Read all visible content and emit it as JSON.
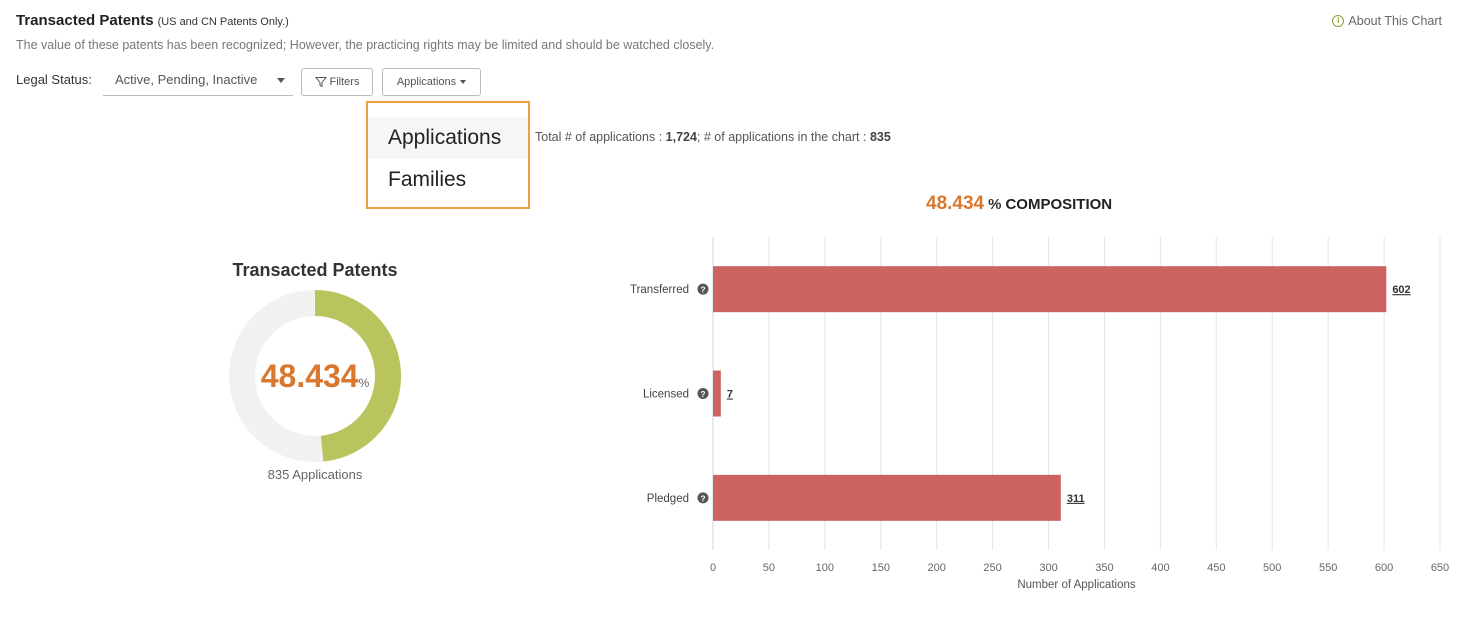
{
  "header": {
    "title": "Transacted Patents",
    "subtitle": "(US and CN Patents Only.)",
    "description": "The value of these patents has been recognized; However, the practicing rights may be limited and should be watched closely.",
    "about_link": "About This Chart"
  },
  "toolbar": {
    "legal_status_label": "Legal Status:",
    "legal_status_value": "Active, Pending, Inactive",
    "filters_label": "Filters",
    "applications_label": "Applications"
  },
  "dropdown": {
    "options": [
      "Applications",
      "Families"
    ],
    "selected": "Applications"
  },
  "totals": {
    "prefix": "Total # of applications : ",
    "total": "1,724",
    "middle": "; # of applications in the chart : ",
    "in_chart": "835"
  },
  "composition": {
    "percent": "48.434",
    "percent_sign": "%",
    "label": "COMPOSITION"
  },
  "donut": {
    "title": "Transacted Patents",
    "value_text": "48.434",
    "unit": "%",
    "fraction": 0.48434,
    "footer": "835 Applications",
    "fill_color": "#b9c45e",
    "track_color": "#f1f2ef"
  },
  "chart_data": {
    "type": "bar",
    "orientation": "horizontal",
    "categories": [
      "Transferred",
      "Licensed",
      "Pledged"
    ],
    "values": [
      602,
      7,
      311
    ],
    "value_labels": [
      "602",
      "7",
      "311"
    ],
    "xlabel": "Number of Applications",
    "xlim": [
      0,
      650
    ],
    "xticks": [
      0,
      50,
      100,
      150,
      200,
      250,
      300,
      350,
      400,
      450,
      500,
      550,
      600,
      650
    ],
    "grid": true,
    "bar_color": "#cd6360"
  }
}
